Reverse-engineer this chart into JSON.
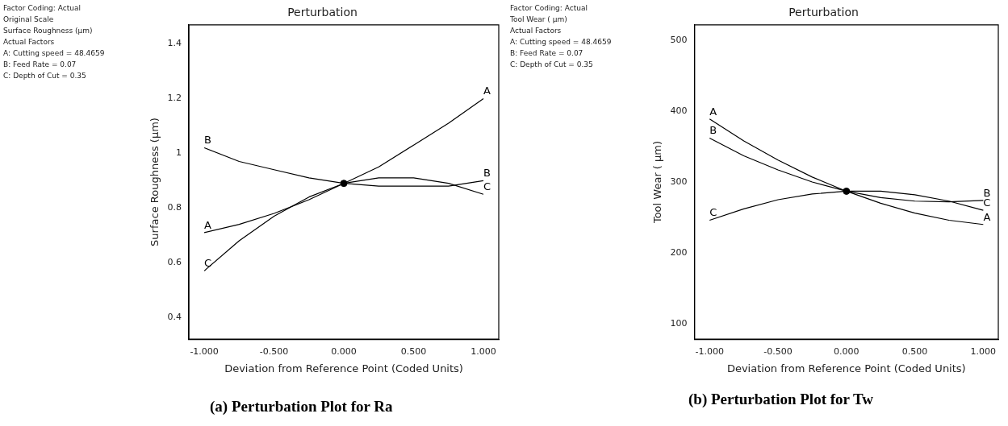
{
  "chart_data": [
    {
      "type": "line",
      "title": "Perturbation",
      "xlabel": "Deviation from Reference Point (Coded Units)",
      "ylabel": "Surface Roughness (µm)",
      "x": [
        -1,
        -0.75,
        -0.5,
        -0.25,
        0,
        0.25,
        0.5,
        0.75,
        1
      ],
      "series": [
        {
          "name": "A",
          "color": "#000000",
          "values": [
            0.71,
            0.74,
            0.78,
            0.83,
            0.89,
            0.95,
            1.03,
            1.11,
            1.2
          ]
        },
        {
          "name": "B",
          "color": "#000000",
          "values": [
            1.02,
            0.97,
            0.94,
            0.91,
            0.89,
            0.88,
            0.88,
            0.88,
            0.9
          ]
        },
        {
          "name": "C",
          "color": "#000000",
          "values": [
            0.57,
            0.68,
            0.77,
            0.84,
            0.89,
            0.91,
            0.91,
            0.89,
            0.85
          ]
        },
        {
          "type": "scatter",
          "color": "#000000",
          "x": [
            0
          ],
          "values": [
            0.89
          ],
          "marker": "circle"
        }
      ],
      "xlim": [
        -1.11,
        1.11
      ],
      "xticks": [
        {
          "value": -1,
          "label": "-1.000"
        },
        {
          "value": -0.5,
          "label": "-0.500"
        },
        {
          "value": 0,
          "label": "0.000"
        },
        {
          "value": 0.5,
          "label": "0.500"
        },
        {
          "value": 1,
          "label": "1.000"
        }
      ],
      "ylim": [
        0.32,
        1.47
      ],
      "yticks": [
        0.4,
        0.6,
        0.8,
        1,
        1.2,
        1.4
      ],
      "legend": false,
      "marker": "none",
      "line_style": "solid",
      "annotations": [
        "Factor Coding: Actual",
        "Original Scale",
        "Surface Roughness (µm)",
        "Actual Factors",
        "A: Cutting speed = 48.4659",
        "B: Feed Rate = 0.07",
        "C: Depth of Cut = 0.35",
        "(a) Perturbation Plot for Ra"
      ]
    },
    {
      "type": "line",
      "title": "Perturbation",
      "xlabel": "Deviation from Reference Point (Coded Units)",
      "ylabel": "Tool Wear ( µm)",
      "x": [
        -1,
        -0.75,
        -0.5,
        -0.25,
        0,
        0.25,
        0.5,
        0.75,
        1
      ],
      "series": [
        {
          "name": "A",
          "color": "#000000",
          "values": [
            389,
            358,
            331,
            307,
            287,
            270,
            256,
            246,
            240
          ]
        },
        {
          "name": "B",
          "color": "#000000",
          "values": [
            362,
            337,
            317,
            300,
            287,
            278,
            273,
            272,
            274
          ]
        },
        {
          "name": "C",
          "color": "#000000",
          "values": [
            246,
            262,
            275,
            283,
            287,
            287,
            282,
            273,
            260
          ]
        },
        {
          "type": "scatter",
          "color": "#000000",
          "x": [
            0
          ],
          "values": [
            287
          ],
          "marker": "circle"
        }
      ],
      "xlim": [
        -1.11,
        1.11
      ],
      "xticks": [
        {
          "value": -1,
          "label": "-1.000"
        },
        {
          "value": -0.5,
          "label": "-0.500"
        },
        {
          "value": 0,
          "label": "0.000"
        },
        {
          "value": 0.5,
          "label": "0.500"
        },
        {
          "value": 1,
          "label": "1.000"
        }
      ],
      "ylim": [
        78,
        522
      ],
      "yticks": [
        100,
        200,
        300,
        400,
        500
      ],
      "legend": false,
      "marker": "none",
      "line_style": "solid",
      "annotations": [
        "Factor Coding: Actual",
        "Tool Wear ( µm)",
        "Actual Factors",
        "A: Cutting speed = 48.4659",
        "B: Feed Rate = 0.07",
        "C: Depth of Cut = 0.35",
        "(b) Perturbation Plot for Tw"
      ]
    }
  ]
}
